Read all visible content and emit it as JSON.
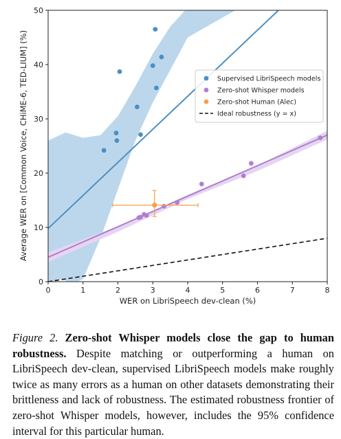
{
  "chart_data": {
    "type": "scatter",
    "xlabel": "WER on LibriSpeech dev-clean (%)",
    "ylabel": "Average WER on [Common Voice, CHiME-6, TED-LIUM] (%)",
    "xlim": [
      0,
      8
    ],
    "ylim": [
      0,
      50
    ],
    "xticks": [
      "0",
      "1",
      "2",
      "3",
      "4",
      "5",
      "6",
      "7",
      "8"
    ],
    "yticks": [
      "0",
      "10",
      "20",
      "30",
      "40",
      "50"
    ],
    "grid": false,
    "legend_position": "center-right",
    "colors": {
      "supervised": "#4c8fc3",
      "zeroshot": "#b07fd0",
      "human": "#f5a14a",
      "ideal": "#111111",
      "supervised_band": "#bcd7ec",
      "zeroshot_band": "#e6d5f1"
    },
    "series": [
      {
        "name": "Supervised LibriSpeech models",
        "marker": "point",
        "points": [
          [
            1.6,
            24.2
          ],
          [
            1.95,
            27.4
          ],
          [
            1.97,
            26.0
          ],
          [
            2.05,
            38.7
          ],
          [
            2.55,
            32.2
          ],
          [
            2.65,
            27.1
          ],
          [
            3.0,
            39.8
          ],
          [
            3.07,
            46.5
          ],
          [
            3.1,
            35.7
          ],
          [
            3.25,
            41.4
          ]
        ],
        "fit": [
          [
            0,
            9.8
          ],
          [
            6.6,
            50
          ]
        ]
      },
      {
        "name": "Zero-shot Whisper models",
        "marker": "point",
        "points": [
          [
            2.6,
            11.8
          ],
          [
            2.65,
            11.9
          ],
          [
            2.75,
            12.4
          ],
          [
            2.82,
            12.2
          ],
          [
            3.32,
            13.9
          ],
          [
            3.7,
            14.6
          ],
          [
            4.4,
            18.0
          ],
          [
            5.6,
            19.5
          ],
          [
            5.82,
            21.8
          ],
          [
            7.8,
            26.5
          ]
        ],
        "fit": [
          [
            0,
            4.5
          ],
          [
            8,
            27.0
          ]
        ]
      },
      {
        "name": "Zero-shot Human (Alec)",
        "marker": "errorbar",
        "points": [
          [
            3.05,
            14.1
          ]
        ],
        "x_err": [
          1.85,
          4.3
        ],
        "y_err": [
          12.0,
          16.8
        ]
      },
      {
        "name": "Ideal robustness (y = x)",
        "marker": "dashed-line",
        "line": [
          [
            0,
            0
          ],
          [
            8,
            8
          ]
        ]
      }
    ]
  },
  "caption": {
    "figure_label": "Figure 2.",
    "title": "Zero-shot Whisper models close the gap to human robustness.",
    "body": "Despite matching or outperforming a human on LibriSpeech dev-clean, supervised LibriSpeech models make roughly twice as many errors as a human on other datasets demonstrating their brittleness and lack of robustness. The estimated robustness frontier of zero-shot Whisper models, however, includes the 95% confidence interval for this particular human."
  }
}
